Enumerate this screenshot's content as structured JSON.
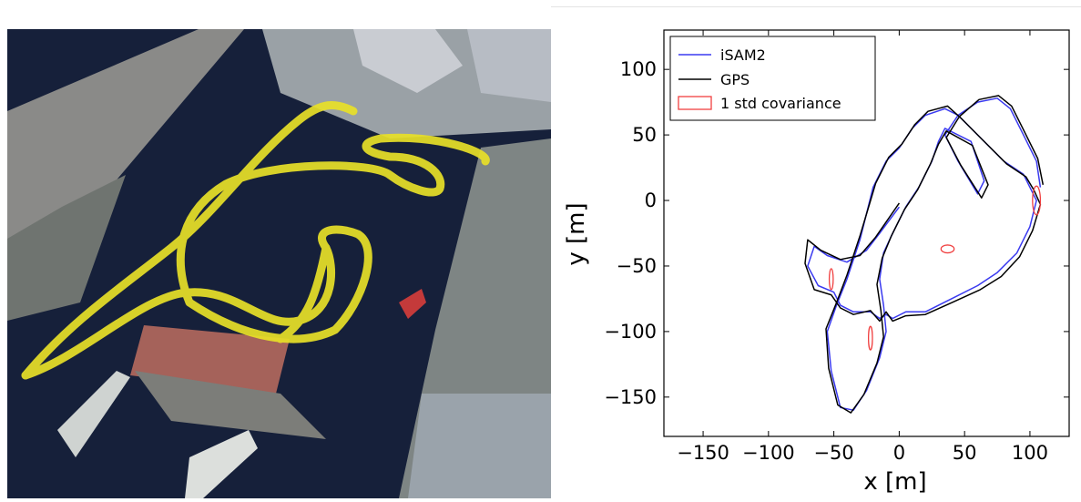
{
  "colors": {
    "water": "#16203a",
    "track": "#e8e028",
    "isam2": "#3a3af0",
    "gps": "#000000",
    "covariance": "#f04040"
  },
  "chart_data": {
    "type": "line",
    "title": "",
    "xlabel": "x [m]",
    "ylabel": "y [m]",
    "xlim": [
      -180,
      130
    ],
    "ylim": [
      -180,
      130
    ],
    "xticks": [
      -150,
      -100,
      -50,
      0,
      50,
      100
    ],
    "yticks": [
      -150,
      -100,
      -50,
      0,
      50,
      100
    ],
    "xtick_labels": [
      "−150",
      "−100",
      "−50",
      "0",
      "50",
      "100"
    ],
    "ytick_labels": [
      "−150",
      "−100",
      "−50",
      "0",
      "50",
      "100"
    ],
    "grid": false,
    "legend_position": "top-left",
    "legend": [
      "iSAM2",
      "GPS",
      "1 std covariance"
    ],
    "series": [
      {
        "name": "iSAM2",
        "color": "#3a3af0",
        "x": [
          0,
          -15,
          -25,
          -40,
          -55,
          -65,
          -70,
          -62,
          -50,
          -45,
          -35,
          -22,
          -15,
          -10,
          -5,
          5,
          20,
          40,
          60,
          75,
          90,
          100,
          105,
          100,
          95,
          80,
          60,
          45,
          35,
          20,
          10,
          0,
          -10,
          -20,
          -25,
          -30,
          -40,
          -48,
          -55,
          -52,
          -45,
          -35,
          -25,
          -15,
          -10,
          -12,
          -15,
          -12,
          -5,
          5,
          15,
          25,
          30,
          35,
          55,
          60,
          65,
          60,
          45,
          35,
          45,
          60,
          75,
          85,
          95,
          105,
          108
        ],
        "y": [
          -5,
          -25,
          -38,
          -47,
          -42,
          -35,
          -50,
          -65,
          -70,
          -80,
          -85,
          -85,
          -90,
          -87,
          -90,
          -85,
          -85,
          -75,
          -65,
          -55,
          -40,
          -20,
          0,
          10,
          20,
          30,
          50,
          65,
          70,
          65,
          55,
          40,
          30,
          10,
          -10,
          -30,
          -60,
          -80,
          -100,
          -130,
          -158,
          -160,
          -145,
          -120,
          -100,
          -80,
          -60,
          -40,
          -25,
          -5,
          10,
          30,
          45,
          55,
          45,
          30,
          15,
          5,
          30,
          50,
          65,
          75,
          78,
          70,
          50,
          30,
          10
        ]
      },
      {
        "name": "GPS",
        "color": "#000000",
        "x": [
          0,
          -18,
          -30,
          -45,
          -60,
          -70,
          -72,
          -65,
          -52,
          -45,
          -35,
          -22,
          -15,
          -10,
          -5,
          5,
          20,
          40,
          62,
          78,
          92,
          102,
          108,
          103,
          97,
          82,
          62,
          47,
          37,
          22,
          12,
          2,
          -8,
          -18,
          -24,
          -30,
          -40,
          -48,
          -56,
          -54,
          -47,
          -37,
          -27,
          -17,
          -12,
          -14,
          -17,
          -13,
          -6,
          4,
          14,
          24,
          30,
          36,
          56,
          62,
          68,
          63,
          47,
          36,
          46,
          61,
          76,
          86,
          96,
          106,
          110
        ],
        "y": [
          -2,
          -28,
          -42,
          -45,
          -38,
          -30,
          -48,
          -68,
          -72,
          -82,
          -87,
          -84,
          -92,
          -85,
          -92,
          -88,
          -87,
          -78,
          -68,
          -58,
          -43,
          -23,
          -3,
          8,
          18,
          28,
          48,
          63,
          72,
          68,
          58,
          43,
          33,
          13,
          -7,
          -27,
          -57,
          -78,
          -98,
          -128,
          -156,
          -162,
          -148,
          -124,
          -104,
          -84,
          -64,
          -44,
          -27,
          -7,
          8,
          28,
          43,
          53,
          42,
          27,
          12,
          2,
          27,
          48,
          64,
          77,
          80,
          72,
          52,
          32,
          12
        ]
      }
    ],
    "covariance_ellipses": [
      {
        "x": -52,
        "y": -60,
        "rx": 1.5,
        "ry": 8
      },
      {
        "x": -22,
        "y": -105,
        "rx": 1.5,
        "ry": 9
      },
      {
        "x": 37,
        "y": -37,
        "rx": 5,
        "ry": 3
      },
      {
        "x": 105,
        "y": 0,
        "rx": 3,
        "ry": 11
      }
    ]
  }
}
